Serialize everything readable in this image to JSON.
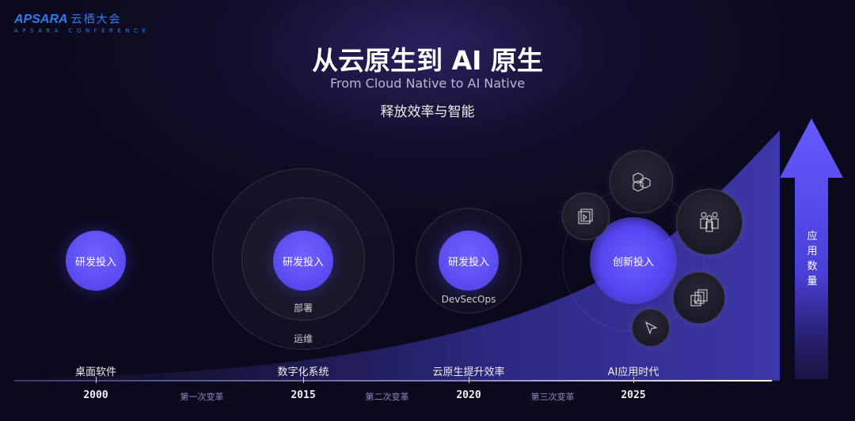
{
  "logo": {
    "brand": "APSARA",
    "brand_cn": "云栖大会",
    "subtitle": "APSARA CONFERENCE"
  },
  "header": {
    "title": "从云原生到 AI 原生",
    "subtitle": "From Cloud Native to AI Native",
    "tagline": "释放效率与智能"
  },
  "stages": [
    {
      "core": "研发投入",
      "era": "桌面软件",
      "year": "2000"
    },
    {
      "core": "研发投入",
      "rings": [
        "部署",
        "运维"
      ],
      "era": "数字化系统",
      "year": "2015"
    },
    {
      "core": "研发投入",
      "rings": [
        "DevSecOps"
      ],
      "era": "云原生提升效率",
      "year": "2020"
    },
    {
      "core": "创新投入",
      "era": "AI应用时代",
      "year": "2025",
      "icons": [
        "video-chat-icon",
        "cubes-icon",
        "people-icon",
        "checklist-stack-icon",
        "cursor-arrow-icon"
      ]
    }
  ],
  "transitions": [
    "第一次变革",
    "第二次变革",
    "第三次变革"
  ],
  "axis_arrow": {
    "label": "应用数量"
  },
  "colors": {
    "accent": "#5b4ff5",
    "logo": "#2d7cf6",
    "background": "#0b0a1c"
  }
}
